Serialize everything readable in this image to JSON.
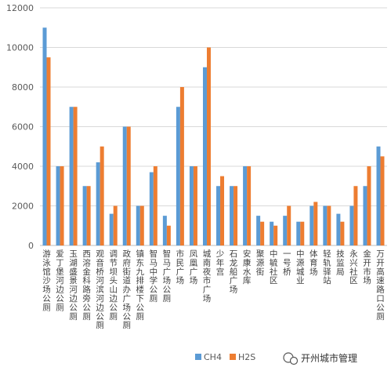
{
  "chart_data": {
    "type": "bar",
    "categories": [
      "游泳馆沙场公厕",
      "爱丁堡河边公厕",
      "玉湖盛景河边公厕",
      "西溶金科路旁公厕",
      "观音桥河滨河边公厕",
      "调节坝头山边公厕",
      "政府街道办广场公厕",
      "镇东九排楼下公厕",
      "智马中学公厕",
      "智马广场公厕",
      "市民广场",
      "凤凰广场",
      "城南夜市广场",
      "少年宫",
      "石龙船广场",
      "安康水库",
      "聚源街",
      "中毓社区",
      "一号桥",
      "中源城业",
      "体育场",
      "轻轨驿站",
      "技监局",
      "永兴社区",
      "金开市场",
      "万开高速路口公厕"
    ],
    "series": [
      {
        "name": "CH4",
        "values": [
          11000,
          4000,
          7000,
          3000,
          4200,
          1600,
          6000,
          2000,
          3700,
          1500,
          7000,
          4000,
          9000,
          3000,
          3000,
          4000,
          1500,
          1200,
          1500,
          1200,
          2000,
          2000,
          1600,
          2000,
          3000,
          5000
        ]
      },
      {
        "name": "H2S",
        "values": [
          9500,
          4000,
          7000,
          3000,
          5000,
          2000,
          6000,
          2000,
          4000,
          1000,
          8000,
          4000,
          10000,
          3500,
          3000,
          4000,
          1200,
          1000,
          2000,
          1200,
          2200,
          2000,
          1200,
          3000,
          4000,
          4500
        ]
      }
    ],
    "ylim": [
      0,
      12000
    ],
    "yticks": [
      0,
      2000,
      4000,
      6000,
      8000,
      10000,
      12000
    ],
    "grid": true,
    "legend_position": "bottom"
  },
  "colors": {
    "CH4": "#5b9bd5",
    "H2S": "#ed7d31",
    "grid": "#d9d9d9",
    "axis": "#bfbfbf"
  },
  "watermark": {
    "text": "开州城市管理",
    "icon": "wechat-icon"
  }
}
